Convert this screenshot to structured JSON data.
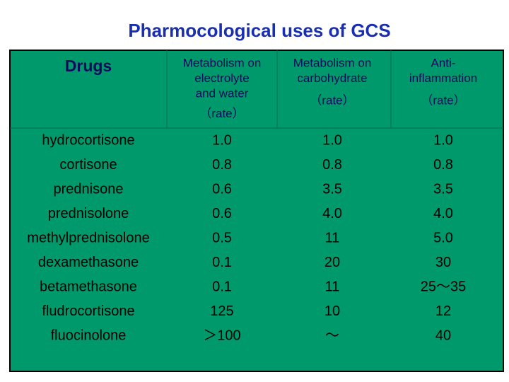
{
  "title": "Pharmocological uses of GCS",
  "table": {
    "header": [
      [
        "Drugs"
      ],
      [
        "Metabolism on",
        "electrolyte",
        "and water",
        "（rate）"
      ],
      [
        "Metabolism on",
        "carbohydrate",
        "（rate）"
      ],
      [
        "Anti-",
        "inflammation",
        "（rate）"
      ]
    ],
    "rows": [
      [
        "hydrocortisone",
        "1.0",
        "1.0",
        "1.0"
      ],
      [
        "cortisone",
        "0.8",
        "0.8",
        "0.8"
      ],
      [
        "prednisone",
        "0.6",
        "3.5",
        "3.5"
      ],
      [
        "prednisolone",
        "0.6",
        "4.0",
        "4.0"
      ],
      [
        "methylprednisolone",
        "0.5",
        "11",
        "5.0"
      ],
      [
        "dexamethasone",
        "0.1",
        "20",
        "30"
      ],
      [
        "betamethasone",
        "0.1",
        "11",
        "25～35"
      ],
      [
        "fludrocortisone",
        "125",
        "10",
        "12"
      ],
      [
        "fluocinolone",
        "＞100",
        "～",
        "40"
      ]
    ]
  }
}
